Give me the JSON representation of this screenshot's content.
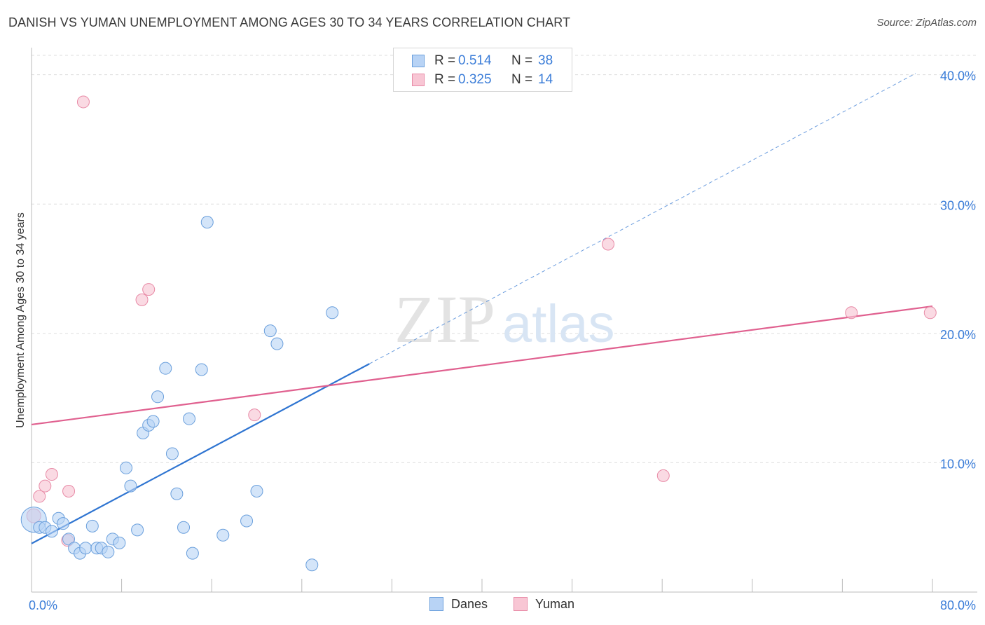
{
  "title": "DANISH VS YUMAN UNEMPLOYMENT AMONG AGES 30 TO 34 YEARS CORRELATION CHART",
  "source": "Source: ZipAtlas.com",
  "watermark": {
    "zip": "ZIP",
    "atlas": "atlas"
  },
  "legend": {
    "danes": {
      "r_label": "R =",
      "r_value": "0.514",
      "n_label": "N =",
      "n_value": "38"
    },
    "yuman": {
      "r_label": "R =",
      "r_value": "0.325",
      "n_label": "N =",
      "n_value": "14"
    }
  },
  "bottom_legend": {
    "danes": "Danes",
    "yuman": "Yuman"
  },
  "colors": {
    "danes_fill": "#b8d3f5",
    "danes_stroke": "#6a9fdc",
    "danes_line": "#2e74d1",
    "yuman_fill": "#f8c6d4",
    "yuman_stroke": "#e88aa6",
    "yuman_line": "#e0608f",
    "accent_text": "#3b7dd8",
    "grid": "#dddddd"
  },
  "chart_data": {
    "type": "scatter",
    "title": "DANISH VS YUMAN UNEMPLOYMENT AMONG AGES 30 TO 34 YEARS CORRELATION CHART",
    "xlabel": "",
    "ylabel": "Unemployment Among Ages 30 to 34 years",
    "xlim": [
      0,
      80
    ],
    "ylim": [
      0,
      41.5
    ],
    "x_tick_labels": [
      {
        "value": 0,
        "label": "0.0%"
      },
      {
        "value": 80,
        "label": "80.0%"
      }
    ],
    "y_tick_labels": [
      {
        "value": 10,
        "label": "10.0%"
      },
      {
        "value": 20,
        "label": "20.0%"
      },
      {
        "value": 30,
        "label": "30.0%"
      },
      {
        "value": 40,
        "label": "40.0%"
      }
    ],
    "x_minor_ticks": [
      0,
      8,
      16,
      24,
      32,
      40,
      48,
      56,
      64,
      72,
      80
    ],
    "series": [
      {
        "name": "Danes",
        "r": 0.514,
        "n": 38,
        "points": [
          [
            0.2,
            5.6
          ],
          [
            0.7,
            5.0
          ],
          [
            1.2,
            5.0
          ],
          [
            1.8,
            4.7
          ],
          [
            2.4,
            5.7
          ],
          [
            2.8,
            5.3
          ],
          [
            3.3,
            4.1
          ],
          [
            3.8,
            3.4
          ],
          [
            4.3,
            3.0
          ],
          [
            4.8,
            3.4
          ],
          [
            5.4,
            5.1
          ],
          [
            5.8,
            3.4
          ],
          [
            6.2,
            3.4
          ],
          [
            6.8,
            3.1
          ],
          [
            7.2,
            4.1
          ],
          [
            7.8,
            3.8
          ],
          [
            8.4,
            9.6
          ],
          [
            8.8,
            8.2
          ],
          [
            9.4,
            4.8
          ],
          [
            9.9,
            12.3
          ],
          [
            10.4,
            12.9
          ],
          [
            10.8,
            13.2
          ],
          [
            11.2,
            15.1
          ],
          [
            11.9,
            17.3
          ],
          [
            12.5,
            10.7
          ],
          [
            12.9,
            7.6
          ],
          [
            13.5,
            5.0
          ],
          [
            14.0,
            13.4
          ],
          [
            14.3,
            3.0
          ],
          [
            15.1,
            17.2
          ],
          [
            15.6,
            28.6
          ],
          [
            17.0,
            4.4
          ],
          [
            19.1,
            5.5
          ],
          [
            20.0,
            7.8
          ],
          [
            21.2,
            20.2
          ],
          [
            21.8,
            19.2
          ],
          [
            24.9,
            2.1
          ],
          [
            26.7,
            21.6
          ]
        ],
        "trend": {
          "x": [
            0,
            30
          ],
          "y": [
            3.75,
            17.65
          ]
        },
        "trend_dashed": {
          "x": [
            30,
            78.5
          ],
          "y": [
            17.65,
            40.1
          ]
        }
      },
      {
        "name": "Yuman",
        "r": 0.325,
        "n": 14,
        "points": [
          [
            0.2,
            5.9
          ],
          [
            0.7,
            7.4
          ],
          [
            1.2,
            8.2
          ],
          [
            1.8,
            9.1
          ],
          [
            3.2,
            4.0
          ],
          [
            3.3,
            7.8
          ],
          [
            4.6,
            37.9
          ],
          [
            9.8,
            22.6
          ],
          [
            10.4,
            23.4
          ],
          [
            19.8,
            13.7
          ],
          [
            51.2,
            26.9
          ],
          [
            56.1,
            9.0
          ],
          [
            72.8,
            21.6
          ],
          [
            79.8,
            21.6
          ]
        ],
        "trend": {
          "x": [
            0,
            80
          ],
          "y": [
            12.95,
            22.1
          ]
        }
      }
    ]
  }
}
